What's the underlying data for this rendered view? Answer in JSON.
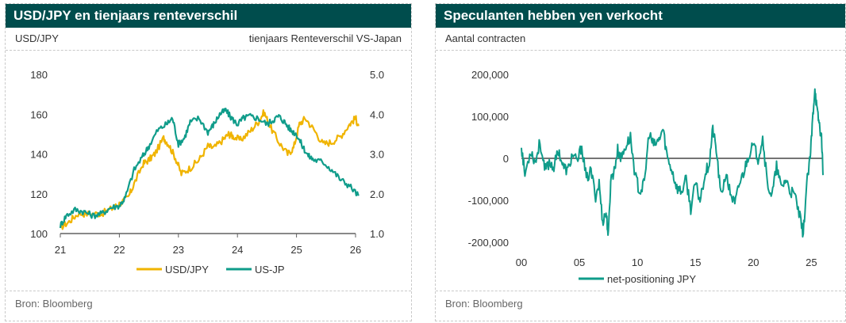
{
  "left": {
    "title": "USD/JPY en tienjaars renteverschil",
    "subtitle_left": "USD/JPY",
    "subtitle_right": "tienjaars Renteverschil VS-Japan",
    "source": "Bron: Bloomberg"
  },
  "right": {
    "title": "Speculanten hebben yen verkocht",
    "subtitle": "Aantal contracten",
    "source": "Bron: Bloomberg"
  },
  "colors": {
    "header": "#004d4d",
    "gold": "#f0b400",
    "teal": "#0f9c8a",
    "axis": "#606060"
  },
  "chart_data": [
    {
      "type": "line",
      "title": "USD/JPY en tienjaars renteverschil",
      "x_ticks": [
        "21",
        "22",
        "23",
        "24",
        "25",
        "26"
      ],
      "xlim": [
        21,
        26
      ],
      "y_left": {
        "label": "USD/JPY",
        "ylim": [
          100,
          180
        ],
        "ticks": [
          "100",
          "120",
          "140",
          "160",
          "180"
        ]
      },
      "y_right": {
        "label": "tienjaars Renteverschil VS-Japan",
        "ylim": [
          1.0,
          5.0
        ],
        "ticks": [
          "1.0",
          "2.0",
          "3.0",
          "4.0",
          "5.0"
        ]
      },
      "legend_position": "bottom-center",
      "series": [
        {
          "name": "USD/JPY",
          "axis": "left",
          "color": "#f0b400",
          "x": [
            21.0,
            21.15,
            21.3,
            21.5,
            21.7,
            21.9,
            22.0,
            22.15,
            22.25,
            22.4,
            22.5,
            22.6,
            22.75,
            22.83,
            22.95,
            23.05,
            23.2,
            23.35,
            23.5,
            23.6,
            23.75,
            23.85,
            23.92,
            24.05,
            24.2,
            24.35,
            24.45,
            24.55,
            24.7,
            24.85,
            24.95,
            25.05,
            25.15,
            25.3,
            25.45,
            25.6,
            25.75,
            25.9,
            26.0,
            26.05
          ],
          "values": [
            103,
            106,
            110,
            110,
            110,
            113,
            115,
            118,
            125,
            135,
            137,
            140,
            148,
            145,
            138,
            130,
            133,
            137,
            144,
            143,
            147,
            150,
            149,
            147,
            151,
            156,
            161,
            154,
            146,
            140,
            143,
            155,
            158,
            152,
            145,
            146,
            149,
            155,
            158,
            154
          ]
        },
        {
          "name": "US-JP",
          "axis": "right",
          "color": "#0f9c8a",
          "x": [
            21.0,
            21.1,
            21.25,
            21.4,
            21.55,
            21.7,
            21.85,
            22.0,
            22.1,
            22.25,
            22.4,
            22.5,
            22.65,
            22.8,
            22.9,
            23.0,
            23.1,
            23.2,
            23.35,
            23.5,
            23.6,
            23.7,
            23.8,
            23.9,
            24.0,
            24.1,
            24.2,
            24.35,
            24.5,
            24.6,
            24.7,
            24.8,
            24.9,
            25.0,
            25.1,
            25.2,
            25.3,
            25.45,
            25.6,
            25.75,
            25.9,
            26.05
          ],
          "values": [
            1.2,
            1.45,
            1.6,
            1.55,
            1.45,
            1.5,
            1.65,
            1.7,
            1.9,
            2.6,
            2.95,
            3.2,
            3.6,
            3.75,
            3.9,
            3.25,
            3.4,
            3.8,
            3.9,
            3.55,
            3.75,
            4.0,
            4.1,
            3.9,
            3.75,
            3.9,
            3.95,
            3.9,
            3.75,
            3.85,
            3.95,
            3.8,
            3.6,
            3.5,
            3.2,
            2.95,
            2.85,
            2.8,
            2.6,
            2.35,
            2.2,
            1.95
          ]
        }
      ]
    },
    {
      "type": "line",
      "title": "Speculanten hebben yen verkocht",
      "ylabel": "Aantal contracten",
      "x_ticks": [
        "00",
        "05",
        "10",
        "15",
        "20",
        "25"
      ],
      "xlim": [
        0,
        26
      ],
      "ylim": [
        -200000,
        200000
      ],
      "y_ticks": [
        "-200,000",
        "-100,000",
        "0",
        "100,000",
        "200,000"
      ],
      "legend_position": "bottom-center",
      "series": [
        {
          "name": "net-positioning JPY",
          "color": "#0f9c8a",
          "x": [
            0.0,
            0.3,
            0.8,
            1.2,
            1.6,
            2.0,
            2.4,
            2.8,
            3.2,
            3.6,
            4.0,
            4.4,
            4.8,
            5.2,
            5.6,
            6.0,
            6.4,
            6.7,
            7.0,
            7.3,
            7.5,
            7.7,
            8.0,
            8.3,
            8.6,
            9.0,
            9.4,
            9.8,
            10.2,
            10.6,
            11.0,
            11.4,
            11.8,
            12.2,
            12.6,
            13.0,
            13.4,
            13.8,
            14.2,
            14.6,
            15.0,
            15.4,
            15.8,
            16.2,
            16.5,
            16.8,
            17.2,
            17.6,
            18.0,
            18.4,
            18.8,
            19.2,
            19.6,
            20.0,
            20.4,
            20.8,
            21.2,
            21.6,
            22.0,
            22.4,
            22.8,
            23.2,
            23.6,
            24.0,
            24.3,
            24.6,
            24.9,
            25.1,
            25.3,
            25.5,
            25.7,
            25.9,
            26.0
          ],
          "values": [
            30000,
            -40000,
            20000,
            -10000,
            40000,
            -30000,
            -10000,
            -20000,
            20000,
            -20000,
            -30000,
            10000,
            -10000,
            30000,
            -50000,
            -30000,
            -90000,
            -60000,
            -150000,
            -130000,
            -185000,
            -50000,
            -30000,
            20000,
            0,
            30000,
            50000,
            -40000,
            -80000,
            -60000,
            60000,
            30000,
            40000,
            70000,
            0,
            -30000,
            -70000,
            -80000,
            -50000,
            -120000,
            -60000,
            -100000,
            -40000,
            -10000,
            70000,
            20000,
            -90000,
            -40000,
            -80000,
            -110000,
            -60000,
            -30000,
            10000,
            30000,
            0,
            50000,
            -60000,
            -90000,
            -20000,
            -70000,
            -50000,
            -80000,
            -90000,
            -140000,
            -180000,
            -60000,
            0,
            90000,
            170000,
            110000,
            80000,
            40000,
            -40000
          ]
        }
      ]
    }
  ]
}
